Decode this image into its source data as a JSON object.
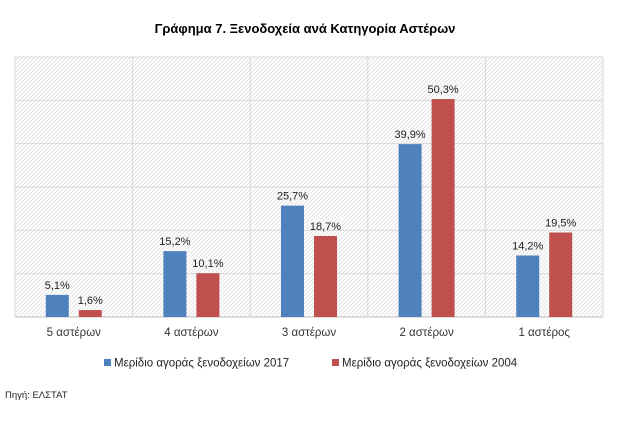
{
  "chart_data": {
    "type": "bar",
    "title": "Γράφημα 7.  Ξενοδοχεία ανά Κατηγορία Αστέρων",
    "categories": [
      "5 αστέρων",
      "4 αστέρων",
      "3 αστέρων",
      "2 αστέρων",
      "1 αστέρος"
    ],
    "series": [
      {
        "name": "Μερίδιο αγοράς ξενοδοχείων 2017",
        "values": [
          5.1,
          15.2,
          25.7,
          39.9,
          14.2
        ],
        "labels": [
          "5,1%",
          "15,2%",
          "25,7%",
          "39,9%",
          "14,2%"
        ],
        "color": "#4f81bd"
      },
      {
        "name": "Μερίδιο αγοράς ξενοδοχείων 2004",
        "values": [
          1.6,
          10.1,
          18.7,
          50.3,
          19.5
        ],
        "labels": [
          "1,6%",
          "10,1%",
          "18,7%",
          "50,3%",
          "19,5%"
        ],
        "color": "#c0504d"
      }
    ],
    "ylim": [
      0,
      60
    ],
    "grid": true,
    "legend_position": "bottom",
    "background_pattern": "diagonal-hatch"
  },
  "source": "Πηγή: ΕΛΣΤΑΤ"
}
